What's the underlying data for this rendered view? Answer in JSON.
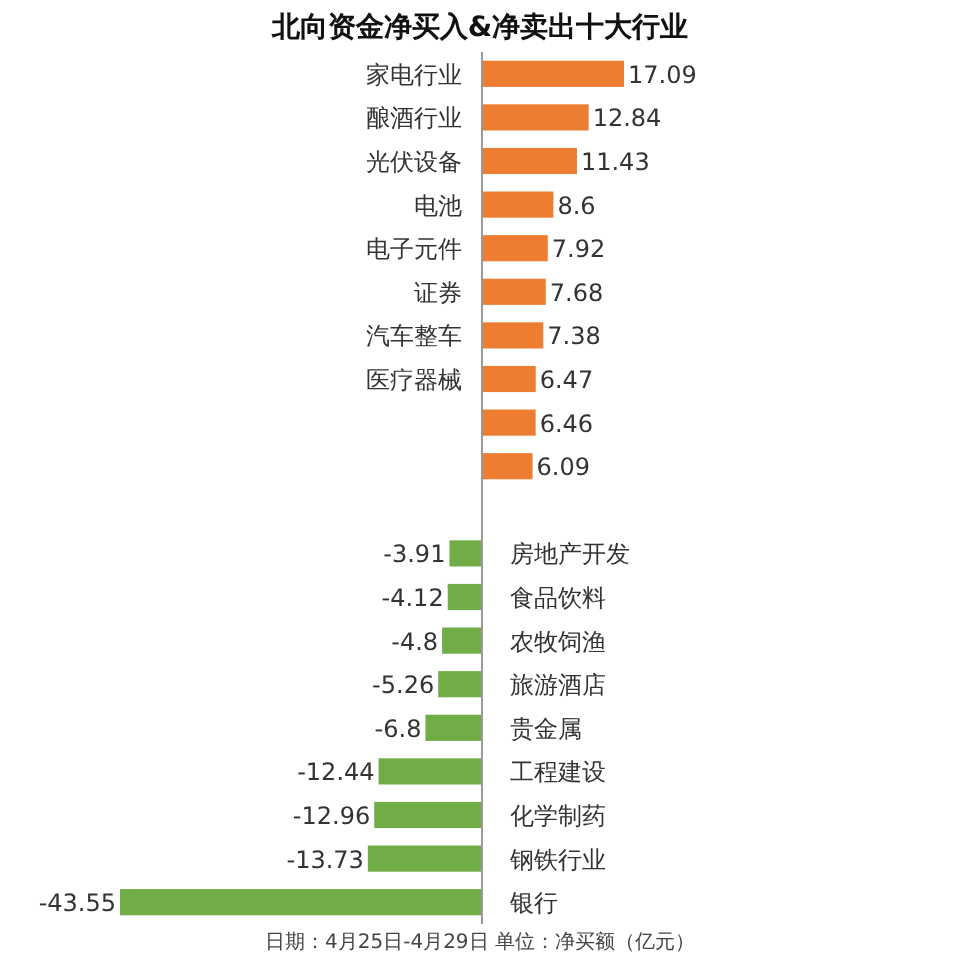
{
  "chart_data": {
    "type": "bar",
    "orientation": "horizontal",
    "title": "北向资金净买入&净卖出十大行业",
    "categories": [
      "家电行业",
      "酿酒行业",
      "光伏设备",
      "电池",
      "电子元件",
      "证券",
      "汽车整车",
      "医疗器械",
      null,
      null,
      null,
      "房地产开发",
      "食品饮料",
      "农牧饲渔",
      "旅游酒店",
      "贵金属",
      "工程建设",
      "化学制药",
      "钢铁行业",
      "银行"
    ],
    "values": [
      17.09,
      12.84,
      11.43,
      8.6,
      7.92,
      7.68,
      7.38,
      6.47,
      6.46,
      6.09,
      null,
      -3.91,
      -4.12,
      -4.8,
      -5.26,
      -6.8,
      -12.44,
      -12.96,
      -13.73,
      -43.55
    ],
    "value_labels": [
      "17.09",
      "12.84",
      "11.43",
      "8.6",
      "7.92",
      "7.68",
      "7.38",
      "6.47",
      "6.46",
      "6.09",
      null,
      "-3.91",
      "-4.12",
      "-4.8",
      "-5.26",
      "-6.8",
      "-12.44",
      "-12.96",
      "-13.73",
      "-43.55"
    ],
    "colors": [
      "#ed7d31",
      "#ed7d31",
      "#ed7d31",
      "#ed7d31",
      "#ed7d31",
      "#ed7d31",
      "#ed7d31",
      "#ed7d31",
      "#ed7d31",
      "#ed7d31",
      "#70ad47",
      "#70ad47",
      "#70ad47",
      "#70ad47",
      "#70ad47",
      "#70ad47",
      "#70ad47",
      "#70ad47",
      "#70ad47",
      "#70ad47"
    ],
    "annotations": [
      "日期：4月25日-4月29日 单位：净买额（亿元）"
    ]
  }
}
